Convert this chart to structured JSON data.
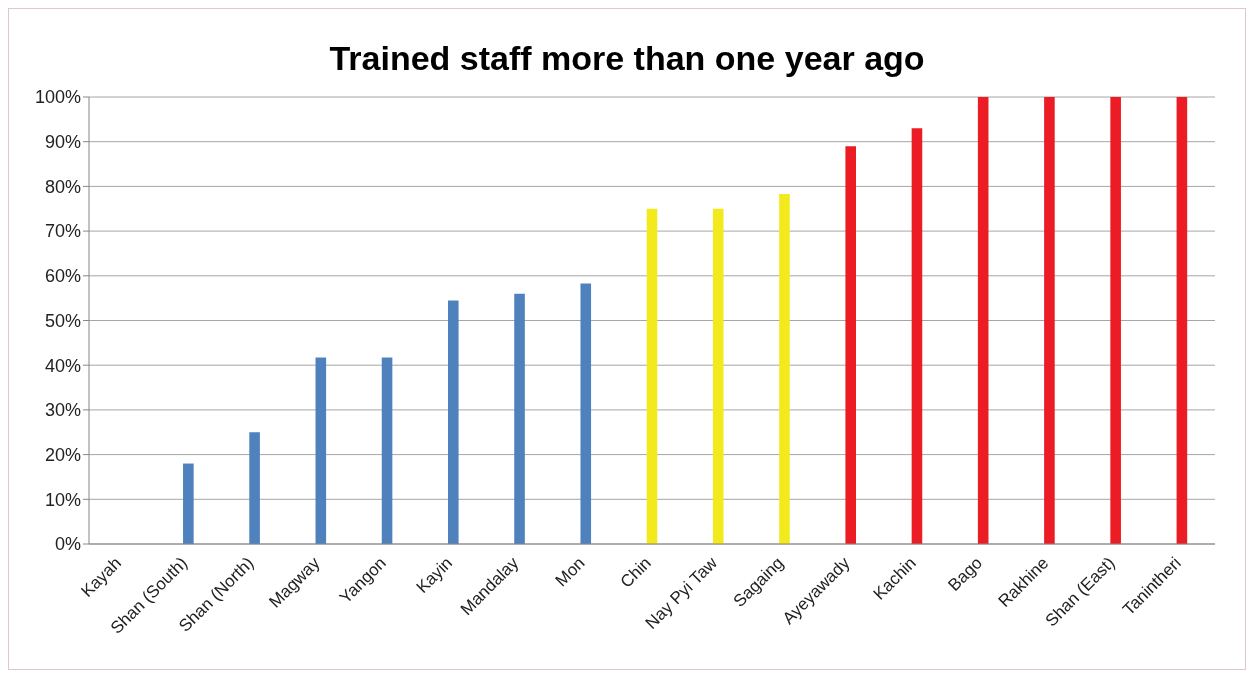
{
  "chart_data": {
    "type": "bar",
    "title": "Trained staff more than one year ago",
    "categories": [
      "Kayah",
      "Shan (South)",
      "Shan (North)",
      "Magway",
      "Yangon",
      "Kayin",
      "Mandalay",
      "Mon",
      "Chin",
      "Nay Pyi Taw",
      "Sagaing",
      "Ayeyawady",
      "Kachin",
      "Bago",
      "Rakhine",
      "Shan (East)",
      "Tanintheri"
    ],
    "values": [
      0,
      18,
      25,
      41.7,
      41.7,
      54.5,
      56,
      58.3,
      75,
      75,
      78.3,
      89,
      93,
      100,
      100,
      100,
      100
    ],
    "colors": [
      "#4f81bd",
      "#4f81bd",
      "#4f81bd",
      "#4f81bd",
      "#4f81bd",
      "#4f81bd",
      "#4f81bd",
      "#4f81bd",
      "#f2ea1c",
      "#f2ea1c",
      "#f2ea1c",
      "#ec1c24",
      "#ec1c24",
      "#ec1c24",
      "#ec1c24",
      "#ec1c24",
      "#ec1c24"
    ],
    "ylim": [
      0,
      100
    ],
    "yticks": [
      {
        "value": 0,
        "label": "0%"
      },
      {
        "value": 10,
        "label": "10%"
      },
      {
        "value": 20,
        "label": "20%"
      },
      {
        "value": 30,
        "label": "30%"
      },
      {
        "value": 40,
        "label": "40%"
      },
      {
        "value": 50,
        "label": "50%"
      },
      {
        "value": 60,
        "label": "60%"
      },
      {
        "value": 70,
        "label": "70%"
      },
      {
        "value": 80,
        "label": "80%"
      },
      {
        "value": 90,
        "label": "90%"
      },
      {
        "value": 100,
        "label": "100%"
      }
    ],
    "grid": "y",
    "legend": false
  }
}
